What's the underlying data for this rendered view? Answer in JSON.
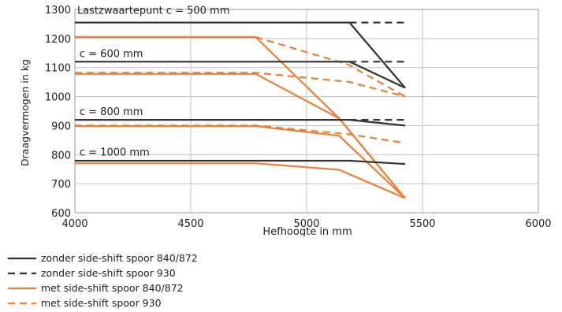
{
  "chart_data": {
    "type": "line",
    "title": "",
    "xlabel": "Hefhoogte in mm",
    "ylabel": "Draagvermogen in kg",
    "xlim": [
      4000,
      6000
    ],
    "ylim": [
      600,
      1300
    ],
    "xticks": [
      4000,
      4500,
      5000,
      5500,
      6000
    ],
    "yticks": [
      600,
      700,
      800,
      900,
      1000,
      1100,
      1200,
      1300
    ],
    "grid": true,
    "legend_position": "bottom-left",
    "annotations": [
      {
        "text": "Lastzwaartepunt c = 500 mm",
        "x": 4010,
        "y": 1285
      },
      {
        "text": "c = 600 mm",
        "x": 4020,
        "y": 1136
      },
      {
        "text": "c = 800 mm",
        "x": 4020,
        "y": 937
      },
      {
        "text": "c = 1000 mm",
        "x": 4020,
        "y": 797
      }
    ],
    "series": [
      {
        "name": "zonder side-shift spoor 840/872",
        "group": "c500",
        "color": "#333333",
        "dash": "solid",
        "x": [
          4000,
          5185,
          5425
        ],
        "y": [
          1255,
          1255,
          1030
        ]
      },
      {
        "name": "zonder side-shift spoor 930",
        "group": "c500",
        "color": "#333333",
        "dash": "dashed",
        "x": [
          5185,
          5425
        ],
        "y": [
          1255,
          1255
        ]
      },
      {
        "name": "met side-shift spoor 840/872",
        "group": "c500",
        "color": "#ee7d35",
        "dash": "solid",
        "x": [
          4000,
          4780,
          5140,
          5425
        ],
        "y": [
          1205,
          1205,
          925,
          650
        ]
      },
      {
        "name": "met side-shift spoor 930",
        "group": "c500",
        "color": "#ee7d35",
        "dash": "dashed",
        "x": [
          4780,
          5180,
          5425
        ],
        "y": [
          1205,
          1110,
          1000
        ]
      },
      {
        "name": "zonder side-shift spoor 840/872",
        "group": "c600",
        "color": "#333333",
        "dash": "solid",
        "x": [
          4000,
          5185,
          5425
        ],
        "y": [
          1120,
          1120,
          1030
        ]
      },
      {
        "name": "zonder side-shift spoor 930",
        "group": "c600",
        "color": "#333333",
        "dash": "dashed",
        "x": [
          5185,
          5425
        ],
        "y": [
          1120,
          1120
        ]
      },
      {
        "name": "met side-shift spoor 840/872",
        "group": "c600",
        "color": "#ee7d35",
        "dash": "solid",
        "x": [
          4000,
          4780,
          5140,
          5425
        ],
        "y": [
          1078,
          1078,
          925,
          650
        ]
      },
      {
        "name": "met side-shift spoor 930",
        "group": "c600",
        "color": "#ee7d35",
        "dash": "dashed",
        "x": [
          4000,
          4780,
          5185,
          5425
        ],
        "y": [
          1082,
          1082,
          1050,
          1000
        ]
      },
      {
        "name": "zonder side-shift spoor 840/872",
        "group": "c800",
        "color": "#333333",
        "dash": "solid",
        "x": [
          4000,
          5185,
          5425
        ],
        "y": [
          920,
          920,
          900
        ]
      },
      {
        "name": "zonder side-shift spoor 930",
        "group": "c800",
        "color": "#333333",
        "dash": "dashed",
        "x": [
          5185,
          5425
        ],
        "y": [
          920,
          920
        ]
      },
      {
        "name": "met side-shift spoor 840/872",
        "group": "c800",
        "color": "#ee7d35",
        "dash": "solid",
        "x": [
          4000,
          4780,
          5140,
          5425
        ],
        "y": [
          898,
          898,
          865,
          650
        ]
      },
      {
        "name": "met side-shift spoor 930",
        "group": "c800",
        "color": "#ee7d35",
        "dash": "dashed",
        "x": [
          4000,
          4780,
          5185,
          5425
        ],
        "y": [
          900,
          900,
          870,
          840
        ]
      },
      {
        "name": "zonder side-shift spoor 840/872",
        "group": "c1000",
        "color": "#333333",
        "dash": "solid",
        "x": [
          4000,
          5185,
          5425
        ],
        "y": [
          779,
          779,
          768
        ]
      },
      {
        "name": "met side-shift spoor 840/872",
        "group": "c1000",
        "color": "#ee7d35",
        "dash": "solid",
        "x": [
          4000,
          4780,
          5140,
          5425
        ],
        "y": [
          770,
          770,
          748,
          650
        ]
      }
    ]
  },
  "legend": [
    {
      "label": "zonder side-shift spoor 840/872",
      "color": "#333333",
      "dash": "solid"
    },
    {
      "label": "zonder side-shift spoor 930",
      "color": "#333333",
      "dash": "dashed"
    },
    {
      "label": "met side-shift spoor 840/872",
      "color": "#ee7d35",
      "dash": "solid"
    },
    {
      "label": "met side-shift spoor 930",
      "color": "#ee7d35",
      "dash": "dashed"
    }
  ]
}
